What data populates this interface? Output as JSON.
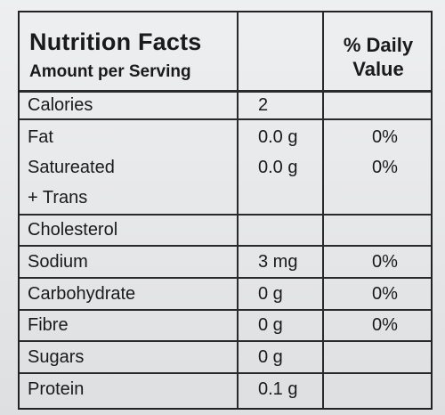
{
  "header": {
    "title": "Nutrition Facts",
    "subtitle": "Amount per Serving",
    "daily_value_line1": "% Daily",
    "daily_value_line2": "Value"
  },
  "rows": [
    {
      "label": "Calories",
      "amount": "2",
      "daily_value": ""
    },
    {
      "label": "Fat",
      "amount": "0.0 g",
      "daily_value": "0%"
    },
    {
      "label": "Satureated",
      "label2": "+ Trans",
      "amount": "0.0 g",
      "daily_value": "0%"
    },
    {
      "label": "Cholesterol",
      "amount": "",
      "daily_value": ""
    },
    {
      "label": "Sodium",
      "amount": "3 mg",
      "daily_value": "0%"
    },
    {
      "label": "Carbohydrate",
      "amount": "0 g",
      "daily_value": "0%"
    },
    {
      "label": "Fibre",
      "amount": "0 g",
      "daily_value": "0%"
    },
    {
      "label": "Sugars",
      "amount": "0 g",
      "daily_value": ""
    },
    {
      "label": "Protein",
      "amount": "0.1 g",
      "daily_value": ""
    }
  ]
}
